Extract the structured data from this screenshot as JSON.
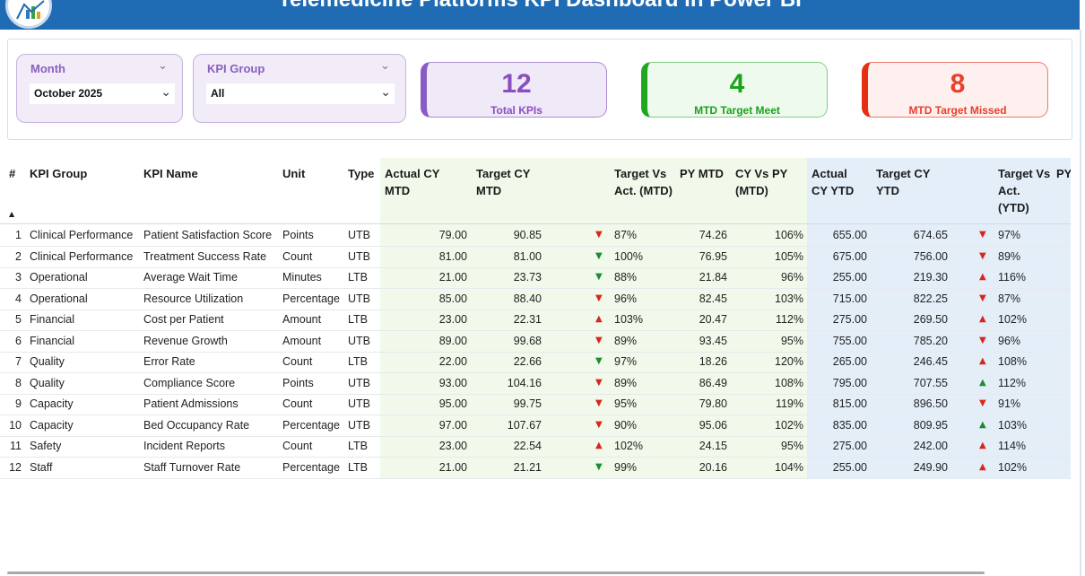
{
  "header": {
    "title": "Telemedicine Platforms KPI Dashboard in Power BI"
  },
  "slicers": {
    "month": {
      "label": "Month",
      "value": "October 2025"
    },
    "kpi_group": {
      "label": "KPI Group",
      "value": "All"
    }
  },
  "cards": {
    "total": {
      "value": "12",
      "label": "Total KPIs",
      "color": "#8a4fbf"
    },
    "meet": {
      "value": "4",
      "label": "MTD Target Meet",
      "color": "#1aa31a"
    },
    "missed": {
      "value": "8",
      "label": "MTD Target Missed",
      "color": "#e8402a"
    }
  },
  "table": {
    "headers": {
      "num": "#",
      "group": "KPI Group",
      "name": "KPI Name",
      "unit": "Unit",
      "type": "Type",
      "actual_mtd": "Actual CY MTD",
      "target_mtd": "Target CY MTD",
      "tva_mtd": "Target Vs Act. (MTD)",
      "py_mtd": "PY MTD",
      "cyvpy_mtd": "CY Vs PY (MTD)",
      "actual_ytd": "Actual CY YTD",
      "target_ytd": "Target CY YTD",
      "tva_ytd": "Target Vs Act. (YTD)",
      "py_ytd": "PY"
    },
    "colors": {
      "mtd_band": "#f1f9ea",
      "ytd_band": "#e3eef9",
      "up_arrow": "#d9261c",
      "down_arrow_good": "#1e8c32"
    },
    "rows": [
      {
        "n": "1",
        "group": "Clinical Performance",
        "name": "Patient Satisfaction Score",
        "unit": "Points",
        "type": "UTB",
        "actual_mtd": "79.00",
        "target_mtd": "90.85",
        "mtd_icon": "down-red",
        "tva_mtd": "87%",
        "py_mtd": "74.26",
        "cyvpy": "106%",
        "actual_ytd": "655.00",
        "target_ytd": "674.65",
        "ytd_icon": "down-red",
        "tva_ytd": "97%"
      },
      {
        "n": "2",
        "group": "Clinical Performance",
        "name": "Treatment Success Rate",
        "unit": "Count",
        "type": "UTB",
        "actual_mtd": "81.00",
        "target_mtd": "81.00",
        "mtd_icon": "down-green",
        "tva_mtd": "100%",
        "py_mtd": "76.95",
        "cyvpy": "105%",
        "actual_ytd": "675.00",
        "target_ytd": "756.00",
        "ytd_icon": "down-red",
        "tva_ytd": "89%"
      },
      {
        "n": "3",
        "group": "Operational",
        "name": "Average Wait Time",
        "unit": "Minutes",
        "type": "LTB",
        "actual_mtd": "21.00",
        "target_mtd": "23.73",
        "mtd_icon": "down-green",
        "tva_mtd": "88%",
        "py_mtd": "21.84",
        "cyvpy": "96%",
        "actual_ytd": "255.00",
        "target_ytd": "219.30",
        "ytd_icon": "up-red",
        "tva_ytd": "116%"
      },
      {
        "n": "4",
        "group": "Operational",
        "name": "Resource Utilization",
        "unit": "Percentage",
        "type": "UTB",
        "actual_mtd": "85.00",
        "target_mtd": "88.40",
        "mtd_icon": "down-red",
        "tva_mtd": "96%",
        "py_mtd": "82.45",
        "cyvpy": "103%",
        "actual_ytd": "715.00",
        "target_ytd": "822.25",
        "ytd_icon": "down-red",
        "tva_ytd": "87%"
      },
      {
        "n": "5",
        "group": "Financial",
        "name": "Cost per Patient",
        "unit": "Amount",
        "type": "LTB",
        "actual_mtd": "23.00",
        "target_mtd": "22.31",
        "mtd_icon": "up-red",
        "tva_mtd": "103%",
        "py_mtd": "20.47",
        "cyvpy": "112%",
        "actual_ytd": "275.00",
        "target_ytd": "269.50",
        "ytd_icon": "up-red",
        "tva_ytd": "102%"
      },
      {
        "n": "6",
        "group": "Financial",
        "name": "Revenue Growth",
        "unit": "Amount",
        "type": "UTB",
        "actual_mtd": "89.00",
        "target_mtd": "99.68",
        "mtd_icon": "down-red",
        "tva_mtd": "89%",
        "py_mtd": "93.45",
        "cyvpy": "95%",
        "actual_ytd": "755.00",
        "target_ytd": "785.20",
        "ytd_icon": "down-red",
        "tva_ytd": "96%"
      },
      {
        "n": "7",
        "group": "Quality",
        "name": "Error Rate",
        "unit": "Count",
        "type": "LTB",
        "actual_mtd": "22.00",
        "target_mtd": "22.66",
        "mtd_icon": "down-green",
        "tva_mtd": "97%",
        "py_mtd": "18.26",
        "cyvpy": "120%",
        "actual_ytd": "265.00",
        "target_ytd": "246.45",
        "ytd_icon": "up-red",
        "tva_ytd": "108%"
      },
      {
        "n": "8",
        "group": "Quality",
        "name": "Compliance Score",
        "unit": "Points",
        "type": "UTB",
        "actual_mtd": "93.00",
        "target_mtd": "104.16",
        "mtd_icon": "down-red",
        "tva_mtd": "89%",
        "py_mtd": "86.49",
        "cyvpy": "108%",
        "actual_ytd": "795.00",
        "target_ytd": "707.55",
        "ytd_icon": "up-green",
        "tva_ytd": "112%"
      },
      {
        "n": "9",
        "group": "Capacity",
        "name": "Patient Admissions",
        "unit": "Count",
        "type": "UTB",
        "actual_mtd": "95.00",
        "target_mtd": "99.75",
        "mtd_icon": "down-red",
        "tva_mtd": "95%",
        "py_mtd": "79.80",
        "cyvpy": "119%",
        "actual_ytd": "815.00",
        "target_ytd": "896.50",
        "ytd_icon": "down-red",
        "tva_ytd": "91%"
      },
      {
        "n": "10",
        "group": "Capacity",
        "name": "Bed Occupancy Rate",
        "unit": "Percentage",
        "type": "UTB",
        "actual_mtd": "97.00",
        "target_mtd": "107.67",
        "mtd_icon": "down-red",
        "tva_mtd": "90%",
        "py_mtd": "95.06",
        "cyvpy": "102%",
        "actual_ytd": "835.00",
        "target_ytd": "809.95",
        "ytd_icon": "up-green",
        "tva_ytd": "103%"
      },
      {
        "n": "11",
        "group": "Safety",
        "name": "Incident Reports",
        "unit": "Count",
        "type": "LTB",
        "actual_mtd": "23.00",
        "target_mtd": "22.54",
        "mtd_icon": "up-red",
        "tva_mtd": "102%",
        "py_mtd": "24.15",
        "cyvpy": "95%",
        "actual_ytd": "275.00",
        "target_ytd": "242.00",
        "ytd_icon": "up-red",
        "tva_ytd": "114%"
      },
      {
        "n": "12",
        "group": "Staff",
        "name": "Staff Turnover Rate",
        "unit": "Percentage",
        "type": "LTB",
        "actual_mtd": "21.00",
        "target_mtd": "21.21",
        "mtd_icon": "down-green",
        "tva_mtd": "99%",
        "py_mtd": "20.16",
        "cyvpy": "104%",
        "actual_ytd": "255.00",
        "target_ytd": "249.90",
        "ytd_icon": "up-red",
        "tva_ytd": "102%"
      }
    ]
  }
}
